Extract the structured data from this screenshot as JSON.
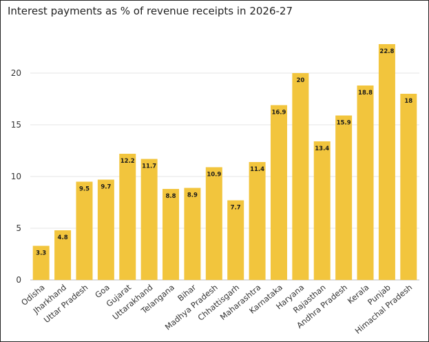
{
  "chart_data": {
    "type": "bar",
    "title": "Interest payments as % of revenue receipts in 2026-27",
    "xlabel": "",
    "ylabel": "",
    "ylim": [
      0,
      25
    ],
    "yticks": [
      0,
      5,
      10,
      15,
      20
    ],
    "grid": true,
    "bar_color": "#F2C53D",
    "categories": [
      "Odisha",
      "Jharkhand",
      "Uttar Pradesh",
      "Goa",
      "Gujarat",
      "Uttarakhand",
      "Telangana",
      "Bihar",
      "Madhya Pradesh",
      "Chhattisgarh",
      "Maharashtra",
      "Karnataka",
      "Haryana",
      "Rajasthan",
      "Andhra Pradesh",
      "Kerala",
      "Punjab",
      "Himachal Pradesh"
    ],
    "values": [
      3.3,
      4.8,
      9.5,
      9.7,
      12.2,
      11.7,
      8.8,
      8.9,
      10.9,
      7.7,
      11.4,
      16.9,
      20,
      13.4,
      15.9,
      18.8,
      22.8,
      18
    ],
    "data_labels": [
      "3.3",
      "4.8",
      "9.5",
      "9.7",
      "12.2",
      "11.7",
      "8.8",
      "8.9",
      "10.9",
      "7.7",
      "11.4",
      "16.9",
      "20",
      "13.4",
      "15.9",
      "18.8",
      "22.8",
      "18"
    ]
  }
}
